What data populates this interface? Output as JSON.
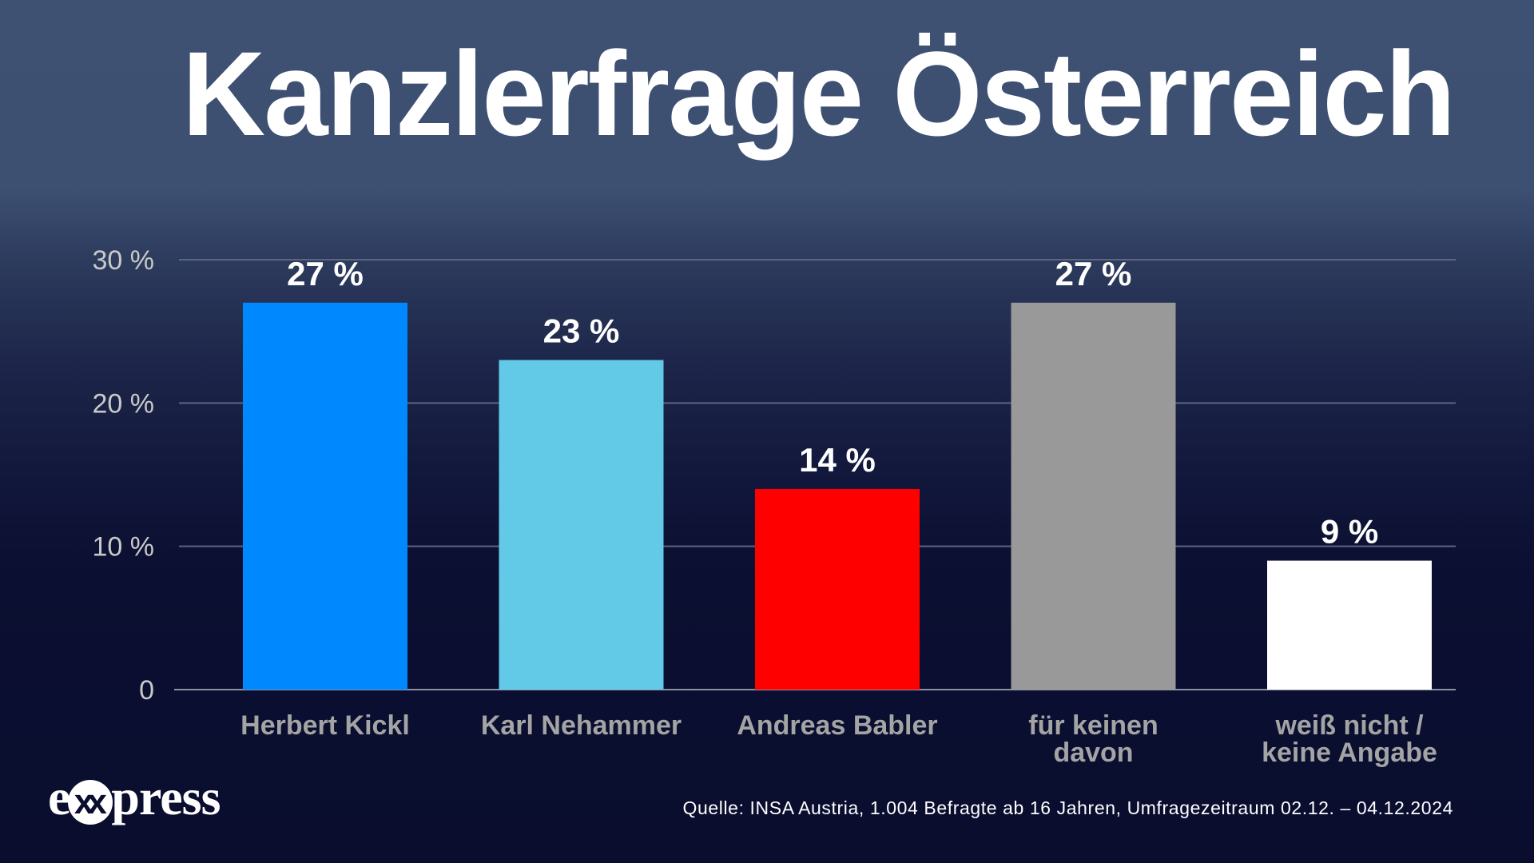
{
  "title": "Kanzlerfrage Österreich",
  "source": "Quelle: INSA Austria, 1.004 Befragte ab 16 Jahren, Umfragezeitraum 02.12. – 04.12.2024",
  "logo": {
    "prefix": "e",
    "mark": "xx",
    "suffix": "press"
  },
  "colors": {
    "background_top": "#3e5173",
    "background_bottom": "#0a0d2e",
    "gridline": "#5e6580",
    "axis_label": "#c9c9c9",
    "category_label": "#a4a4a4"
  },
  "chart_data": {
    "type": "bar",
    "title": "Kanzlerfrage Österreich",
    "xlabel": "",
    "ylabel": "",
    "ylim": [
      0,
      30
    ],
    "grid": true,
    "yticks": [
      0,
      10,
      20,
      30
    ],
    "ytick_labels": [
      "0",
      "10 %",
      "20 %",
      "30 %"
    ],
    "categories": [
      [
        "Herbert Kickl"
      ],
      [
        "Karl Nehammer"
      ],
      [
        "Andreas Babler"
      ],
      [
        "für keinen",
        "davon"
      ],
      [
        "weiß nicht /",
        "keine Angabe"
      ]
    ],
    "values": [
      27,
      23,
      14,
      27,
      9
    ],
    "value_labels": [
      "27 %",
      "23 %",
      "14 %",
      "27 %",
      "9 %"
    ],
    "bar_colors": [
      "#0088ff",
      "#62c9e6",
      "#ff0000",
      "#999999",
      "#ffffff"
    ],
    "legend": "none"
  }
}
